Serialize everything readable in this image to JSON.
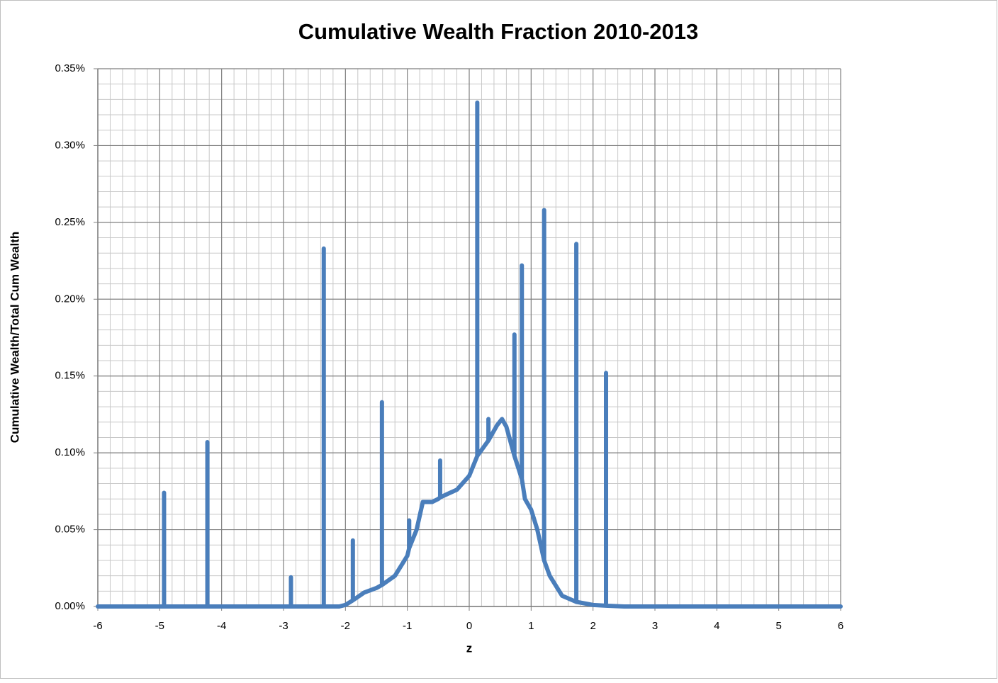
{
  "chart_data": {
    "type": "line",
    "title": "Cumulative Wealth Fraction 2010-2013",
    "x_label": "z",
    "y_label": "Cumulative Wealth/Total Cum Wealth",
    "xlim": [
      -6,
      6
    ],
    "ylim": [
      0,
      0.35
    ],
    "xticks": [
      -6,
      -5,
      -4,
      -3,
      -2,
      -1,
      0,
      1,
      2,
      3,
      4,
      5,
      6
    ],
    "yticks": [
      {
        "value": 0,
        "label": "0.00%"
      },
      {
        "value": 0.05,
        "label": "0.05%"
      },
      {
        "value": 0.1,
        "label": "0.10%"
      },
      {
        "value": 0.15,
        "label": "0.15%"
      },
      {
        "value": 0.2,
        "label": "0.20%"
      },
      {
        "value": 0.25,
        "label": "0.25%"
      },
      {
        "value": 0.3,
        "label": "0.30%"
      },
      {
        "value": 0.35,
        "label": "0.35%"
      }
    ],
    "grid": true,
    "minor_grid": 5,
    "color": "#4a7ebb",
    "x": [
      -6,
      -4.95,
      -4.93,
      -4.93,
      -4.93,
      -4.23,
      -4.23,
      -4.23,
      -2.88,
      -2.88,
      -2.88,
      -2.35,
      -2.35,
      -2.35,
      -2.1,
      -2,
      -1.88,
      -1.88,
      -1.88,
      -1.7,
      -1.5,
      -1.41,
      -1.41,
      -1.41,
      -1.2,
      -1.0,
      -0.97,
      -0.97,
      -0.97,
      -0.85,
      -0.75,
      -0.6,
      -0.5,
      -0.47,
      -0.47,
      -0.47,
      -0.2,
      0,
      0.13,
      0.13,
      0.13,
      0.31,
      0.31,
      0.31,
      0.45,
      0.53,
      0.6,
      0.73,
      0.73,
      0.73,
      0.85,
      0.85,
      0.85,
      0.9,
      1.0,
      1.1,
      1.21,
      1.21,
      1.21,
      1.3,
      1.5,
      1.73,
      1.73,
      1.73,
      2.0,
      2.21,
      2.21,
      2.21,
      2.5,
      6
    ],
    "values": [
      0,
      0,
      0,
      0.074,
      0,
      0,
      0.107,
      0,
      0,
      0.019,
      0,
      0,
      0.233,
      0,
      0,
      0.001,
      0.004,
      0.043,
      0.004,
      0.009,
      0.012,
      0.014,
      0.133,
      0.014,
      0.02,
      0.033,
      0.038,
      0.056,
      0.038,
      0.05,
      0.068,
      0.068,
      0.07,
      0.071,
      0.095,
      0.071,
      0.076,
      0.085,
      0.098,
      0.328,
      0.098,
      0.108,
      0.122,
      0.108,
      0.118,
      0.122,
      0.117,
      0.098,
      0.177,
      0.098,
      0.083,
      0.222,
      0.083,
      0.07,
      0.063,
      0.05,
      0.03,
      0.258,
      0.03,
      0.02,
      0.007,
      0.003,
      0.236,
      0.003,
      0.001,
      0.0005,
      0.152,
      0.0005,
      0,
      0
    ]
  }
}
